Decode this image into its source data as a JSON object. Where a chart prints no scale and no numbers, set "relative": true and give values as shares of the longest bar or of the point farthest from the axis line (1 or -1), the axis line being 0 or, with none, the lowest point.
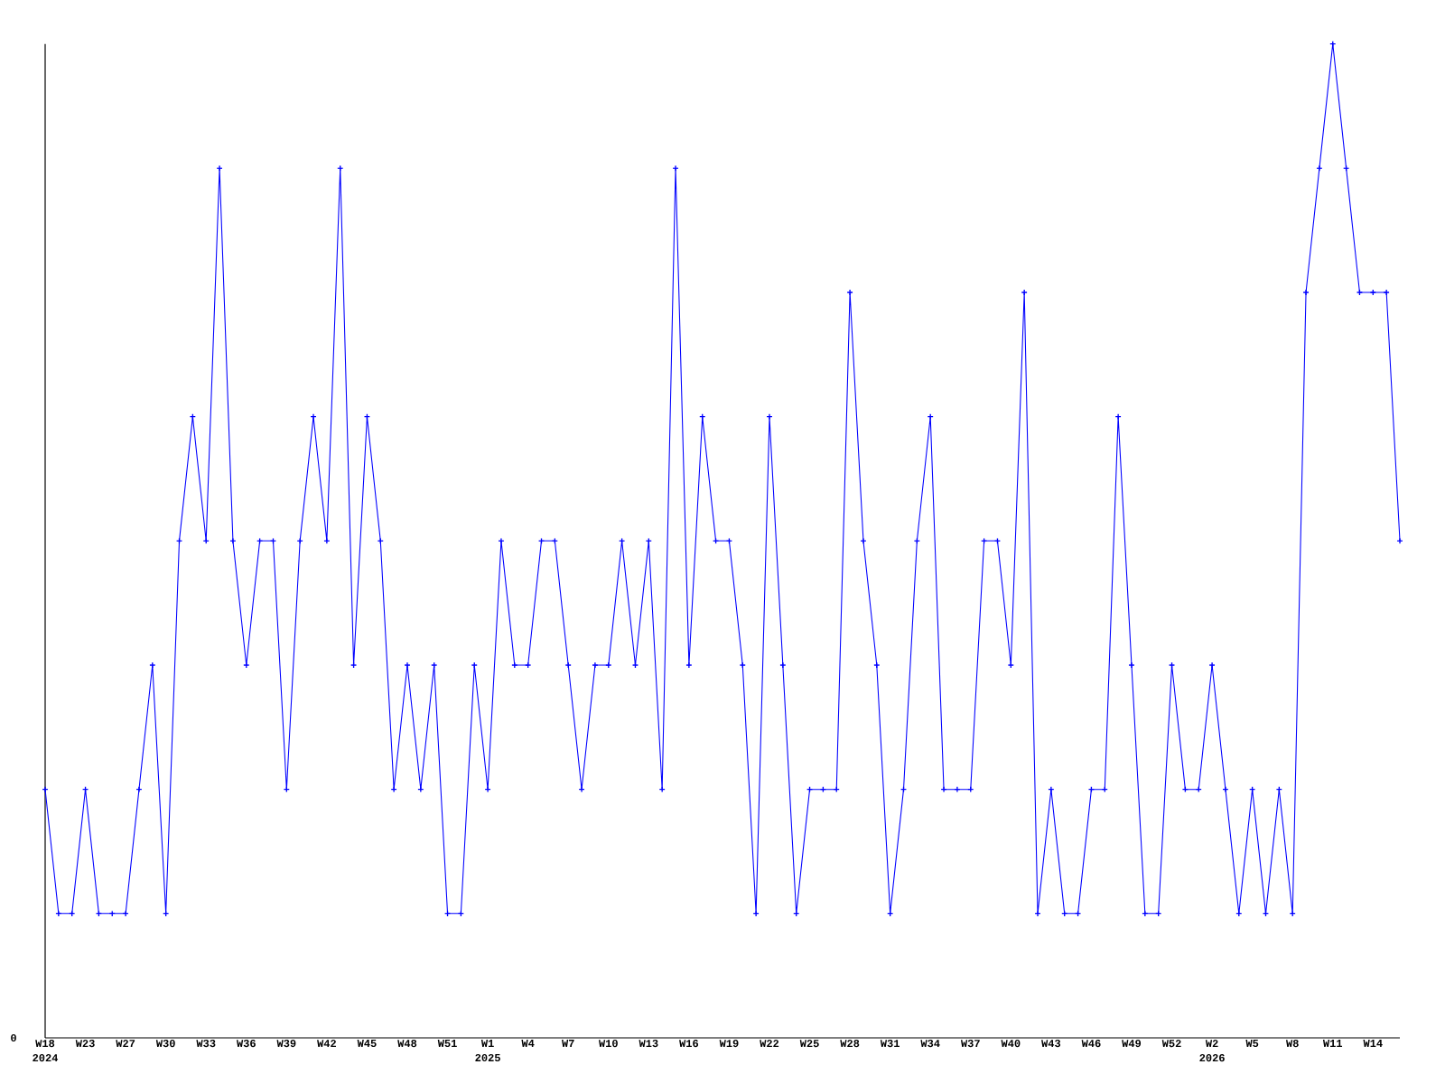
{
  "chart_data": {
    "type": "line",
    "relative": true,
    "marker": "cross",
    "line_style": "solid",
    "categories": [
      "W18 2024",
      null,
      null,
      "W23",
      null,
      null,
      "W27",
      null,
      null,
      "W30",
      null,
      null,
      "W33",
      null,
      null,
      "W36",
      null,
      null,
      "W39",
      null,
      null,
      "W42",
      null,
      null,
      "W45",
      null,
      null,
      "W48",
      null,
      null,
      "W51",
      null,
      null,
      "W1 2025",
      null,
      null,
      "W4",
      null,
      null,
      "W7",
      null,
      null,
      "W10",
      null,
      null,
      "W13",
      null,
      null,
      "W16",
      null,
      null,
      "W19",
      null,
      null,
      "W22",
      null,
      null,
      "W25",
      null,
      null,
      "W28",
      null,
      null,
      "W31",
      null,
      null,
      "W34",
      null,
      null,
      "W37",
      null,
      null,
      "W40",
      null,
      null,
      "W43",
      null,
      null,
      "W46",
      null,
      null,
      "W49",
      null,
      null,
      "W52",
      null,
      null,
      "W2 2026",
      null,
      null,
      "W5",
      null,
      null,
      "W8",
      null,
      null,
      "W11",
      null,
      null,
      "W14",
      null,
      null
    ],
    "series": [
      {
        "color": "#0000ff",
        "values": [
          0.25,
          0.125,
          0.125,
          0.25,
          0.125,
          0.125,
          0.125,
          0.25,
          0.375,
          0.125,
          0.5,
          0.625,
          0.5,
          0.875,
          0.5,
          0.375,
          0.5,
          0.5,
          0.25,
          0.5,
          0.625,
          0.5,
          0.875,
          0.375,
          0.625,
          0.5,
          0.25,
          0.375,
          0.25,
          0.375,
          0.125,
          0.125,
          0.375,
          0.25,
          0.5,
          0.375,
          0.375,
          0.5,
          0.5,
          0.375,
          0.25,
          0.375,
          0.375,
          0.5,
          0.375,
          0.5,
          0.25,
          0.875,
          0.375,
          0.625,
          0.5,
          0.5,
          0.375,
          0.125,
          0.625,
          0.375,
          0.125,
          0.25,
          0.25,
          0.25,
          0.75,
          0.5,
          0.375,
          0.125,
          0.25,
          0.5,
          0.625,
          0.25,
          0.25,
          0.25,
          0.5,
          0.5,
          0.375,
          0.75,
          0.125,
          0.25,
          0.125,
          0.125,
          0.25,
          0.25,
          0.625,
          0.375,
          0.125,
          0.125,
          0.375,
          0.25,
          0.25,
          0.375,
          0.25,
          0.125,
          0.25,
          0.125,
          0.25,
          0.125,
          0.75,
          0.875,
          1,
          0.875,
          0.75,
          0.75,
          0.75,
          0.5
        ]
      }
    ],
    "annotations": [
      "0"
    ]
  }
}
